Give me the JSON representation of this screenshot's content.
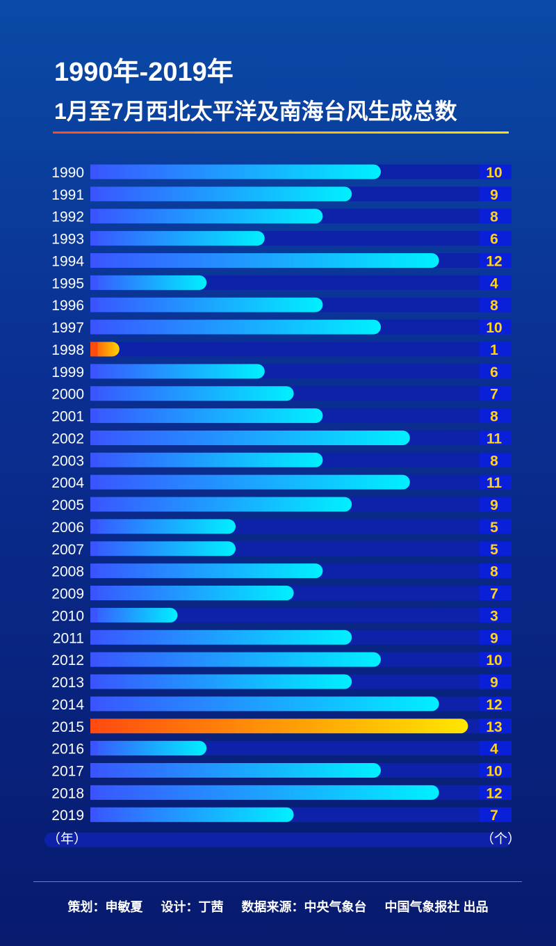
{
  "title": {
    "line1": "1990年-2019年",
    "line2": "1月至7月西北太平洋及南海台风生成总数"
  },
  "colors": {
    "bar_normal_start": "#3a55ff",
    "bar_normal_end": "#00f0ff",
    "bar_min_start": "#ff4a10",
    "bar_min_end": "#ffd400",
    "bar_max_start": "#ff4a10",
    "bar_max_end": "#ffe600",
    "track": "#0d22a8",
    "value_box": "#0a1fd8",
    "value_text": "#ffd21f"
  },
  "chart_data": {
    "type": "bar",
    "orientation": "horizontal",
    "x_unit": "（年）",
    "y_unit": "（个）",
    "categories": [
      "1990",
      "1991",
      "1992",
      "1993",
      "1994",
      "1995",
      "1996",
      "1997",
      "1998",
      "1999",
      "2000",
      "2001",
      "2002",
      "2003",
      "2004",
      "2005",
      "2006",
      "2007",
      "2008",
      "2009",
      "2010",
      "2011",
      "2012",
      "2013",
      "2014",
      "2015",
      "2016",
      "2017",
      "2018",
      "2019"
    ],
    "values": [
      10,
      9,
      8,
      6,
      12,
      4,
      8,
      10,
      1,
      6,
      7,
      8,
      11,
      8,
      11,
      9,
      5,
      5,
      8,
      7,
      3,
      9,
      10,
      9,
      12,
      13,
      4,
      10,
      12,
      7
    ],
    "highlight_min": "1998",
    "highlight_max": "2015",
    "xlim": [
      0,
      13
    ],
    "grid": false,
    "legend": "none"
  },
  "footer": {
    "planner": "策划：申敏夏",
    "designer": "设计：丁茜",
    "source": "数据来源：中央气象台",
    "producer": "中国气象报社 出品"
  }
}
